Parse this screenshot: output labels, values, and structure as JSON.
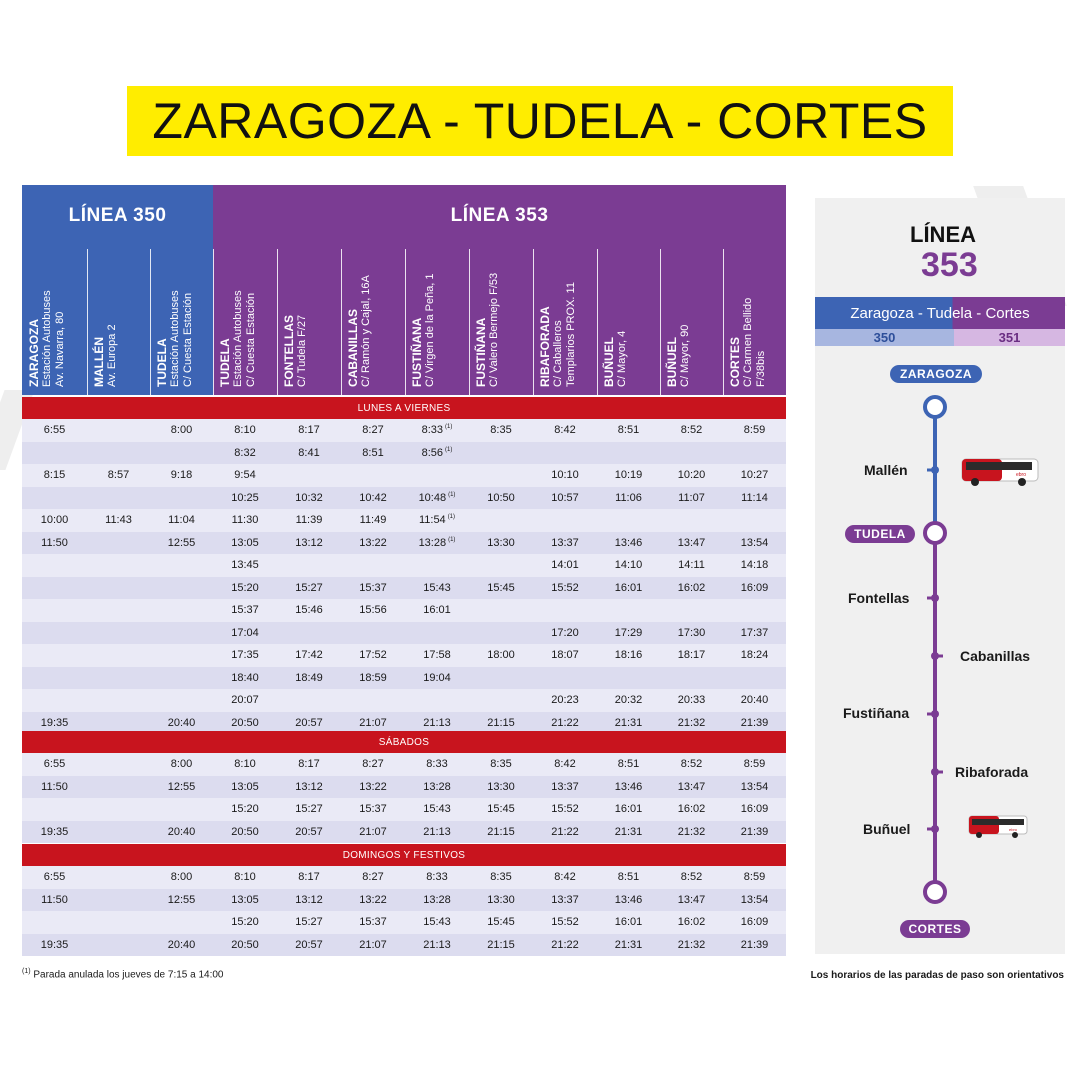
{
  "title": "ZARAGOZA - TUDELA - CORTES",
  "lines": {
    "l350": "LÍNEA 350",
    "l353": "LÍNEA 353"
  },
  "columns": [
    {
      "name": "ZARAGOZA",
      "addr": [
        "Estación Autobuses",
        "Av. Navarra, 80"
      ]
    },
    {
      "name": "MALLÉN",
      "addr": [
        "Av. Europa 2"
      ]
    },
    {
      "name": "TUDELA",
      "addr": [
        "Estación Autobuses",
        "C/ Cuesta Estación"
      ]
    },
    {
      "name": "TUDELA",
      "addr": [
        "Estación Autobuses",
        "C/ Cuesta Estación"
      ]
    },
    {
      "name": "FONTELLAS",
      "addr": [
        "C/ Tudela F/27"
      ]
    },
    {
      "name": "CABANILLAS",
      "addr": [
        "C/ Ramón y Cajal, 16A"
      ]
    },
    {
      "name": "FUSTIÑANA",
      "addr": [
        "C/ Virgen de la Peña, 1"
      ]
    },
    {
      "name": "FUSTIÑANA",
      "addr": [
        "C/ Valero Bermejo F/53"
      ]
    },
    {
      "name": "RIBAFORADA",
      "addr": [
        "C/ Caballeros",
        "Templarios PROX. 11"
      ]
    },
    {
      "name": "BUÑUEL",
      "addr": [
        "C/ Mayor, 4"
      ]
    },
    {
      "name": "BUÑUEL",
      "addr": [
        "C/ Mayor, 90"
      ]
    },
    {
      "name": "CORTES",
      "addr": [
        "C/ Carmen Bellido",
        "F/38bis"
      ]
    }
  ],
  "sections": [
    {
      "label": "LUNES A VIERNES",
      "rows": [
        [
          "6:55",
          "",
          "8:00",
          "8:10",
          "8:17",
          "8:27",
          "8:33",
          "8:35",
          "8:42",
          "8:51",
          "8:52",
          "8:59"
        ],
        [
          "",
          "",
          "",
          "8:32",
          "8:41",
          "8:51",
          "8:56",
          "",
          "",
          "",
          "",
          ""
        ],
        [
          "8:15",
          "8:57",
          "9:18",
          "9:54",
          "",
          "",
          "",
          "",
          "10:10",
          "10:19",
          "10:20",
          "10:27"
        ],
        [
          "",
          "",
          "",
          "10:25",
          "10:32",
          "10:42",
          "10:48",
          "10:50",
          "10:57",
          "11:06",
          "11:07",
          "11:14"
        ],
        [
          "10:00",
          "11:43",
          "11:04",
          "11:30",
          "11:39",
          "11:49",
          "11:54",
          "",
          "",
          "",
          "",
          ""
        ],
        [
          "11:50",
          "",
          "12:55",
          "13:05",
          "13:12",
          "13:22",
          "13:28",
          "13:30",
          "13:37",
          "13:46",
          "13:47",
          "13:54"
        ],
        [
          "",
          "",
          "",
          "13:45",
          "",
          "",
          "",
          "",
          "14:01",
          "14:10",
          "14:11",
          "14:18"
        ],
        [
          "",
          "",
          "",
          "15:20",
          "15:27",
          "15:37",
          "15:43",
          "15:45",
          "15:52",
          "16:01",
          "16:02",
          "16:09"
        ],
        [
          "",
          "",
          "",
          "15:37",
          "15:46",
          "15:56",
          "16:01",
          "",
          "",
          "",
          "",
          ""
        ],
        [
          "",
          "",
          "",
          "17:04",
          "",
          "",
          "",
          "",
          "17:20",
          "17:29",
          "17:30",
          "17:37"
        ],
        [
          "",
          "",
          "",
          "17:35",
          "17:42",
          "17:52",
          "17:58",
          "18:00",
          "18:07",
          "18:16",
          "18:17",
          "18:24"
        ],
        [
          "",
          "",
          "",
          "18:40",
          "18:49",
          "18:59",
          "19:04",
          "",
          "",
          "",
          "",
          ""
        ],
        [
          "",
          "",
          "",
          "20:07",
          "",
          "",
          "",
          "",
          "20:23",
          "20:32",
          "20:33",
          "20:40"
        ],
        [
          "19:35",
          "",
          "20:40",
          "20:50",
          "20:57",
          "21:07",
          "21:13",
          "21:15",
          "21:22",
          "21:31",
          "21:32",
          "21:39"
        ]
      ]
    },
    {
      "label": "SÁBADOS",
      "rows": [
        [
          "6:55",
          "",
          "8:00",
          "8:10",
          "8:17",
          "8:27",
          "8:33",
          "8:35",
          "8:42",
          "8:51",
          "8:52",
          "8:59"
        ],
        [
          "11:50",
          "",
          "12:55",
          "13:05",
          "13:12",
          "13:22",
          "13:28",
          "13:30",
          "13:37",
          "13:46",
          "13:47",
          "13:54"
        ],
        [
          "",
          "",
          "",
          "15:20",
          "15:27",
          "15:37",
          "15:43",
          "15:45",
          "15:52",
          "16:01",
          "16:02",
          "16:09"
        ],
        [
          "19:35",
          "",
          "20:40",
          "20:50",
          "20:57",
          "21:07",
          "21:13",
          "21:15",
          "21:22",
          "21:31",
          "21:32",
          "21:39"
        ]
      ]
    },
    {
      "label": "DOMINGOS Y FESTIVOS",
      "rows": [
        [
          "6:55",
          "",
          "8:00",
          "8:10",
          "8:17",
          "8:27",
          "8:33",
          "8:35",
          "8:42",
          "8:51",
          "8:52",
          "8:59"
        ],
        [
          "11:50",
          "",
          "12:55",
          "13:05",
          "13:12",
          "13:22",
          "13:28",
          "13:30",
          "13:37",
          "13:46",
          "13:47",
          "13:54"
        ],
        [
          "",
          "",
          "",
          "15:20",
          "15:27",
          "15:37",
          "15:43",
          "15:45",
          "15:52",
          "16:01",
          "16:02",
          "16:09"
        ],
        [
          "19:35",
          "",
          "20:40",
          "20:50",
          "20:57",
          "21:07",
          "21:13",
          "21:15",
          "21:22",
          "21:31",
          "21:32",
          "21:39"
        ]
      ]
    }
  ],
  "note_marker": "(1)",
  "notes": [
    [
      0,
      0,
      6
    ],
    [
      0,
      1,
      6
    ],
    [
      0,
      3,
      6
    ],
    [
      0,
      4,
      6
    ],
    [
      0,
      5,
      6
    ]
  ],
  "map": {
    "linea_label": "LÍNEA",
    "linea_number": "353",
    "route_name": "Zaragoza - Tudela - Cortes",
    "route_350": "350",
    "route_351": "351",
    "stops": {
      "zaragoza": "ZARAGOZA",
      "mallen": "Mallén",
      "tudela": "TUDELA",
      "fontellas": "Fontellas",
      "cabanillas": "Cabanillas",
      "fustinana": "Fustiñana",
      "ribaforada": "Ribaforada",
      "bunuel": "Buñuel",
      "cortes": "CORTES"
    },
    "bus_brand": "ebro",
    "colors": {
      "blue": "#3d64b4",
      "purple": "#7b3c93",
      "red": "#c8141e",
      "yellow": "#ffed00"
    }
  },
  "footer": {
    "note_marker": "(1)",
    "note": "Parada anulada los jueves de 7:15 a 14:00",
    "disclaimer": "Los horarios de las paradas de paso son orientativos"
  }
}
